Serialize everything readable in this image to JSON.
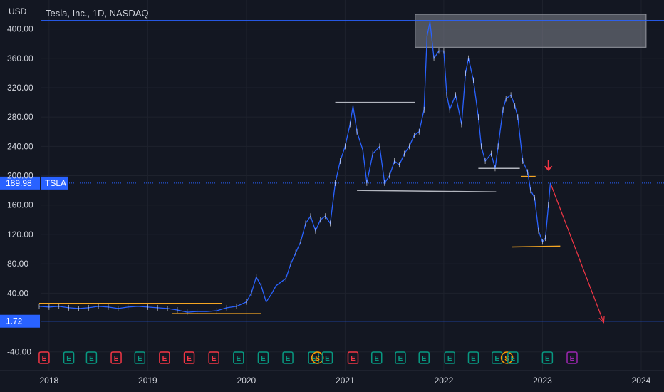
{
  "header": {
    "currency": "USD",
    "symbol_info": "Tesla, Inc., 1D, NASDAQ"
  },
  "colors": {
    "background": "#131722",
    "price_line": "#2962ff",
    "label_bg": "#2962ff",
    "grid": "#1e222d",
    "support": "#f5a623",
    "resistance": "#b2b5be",
    "arrow": "#f23645",
    "event_earnings_up": "#089981",
    "event_earnings_down": "#f23645",
    "event_split": "#ff9800",
    "event_upcoming": "#9c27b0"
  },
  "chart_data": {
    "type": "line",
    "title": "Tesla, Inc., 1D, NASDAQ",
    "ylabel": "USD",
    "ylim": [
      -50,
      420
    ],
    "xlim": [
      2017.9,
      2024.65
    ],
    "y_ticks": [
      "400.00",
      "360.00",
      "320.00",
      "280.00",
      "240.00",
      "200.00",
      "160.00",
      "120.00",
      "80.00",
      "40.00",
      "-40.00"
    ],
    "x_ticks": [
      "2018",
      "2019",
      "2020",
      "2021",
      "2022",
      "2023",
      "2024"
    ],
    "x_tick_values": [
      2018.0,
      2019.0,
      2020.0,
      2021.0,
      2022.0,
      2023.0,
      2024.0
    ],
    "series": [
      {
        "points": [
          [
            2017.9,
            22
          ],
          [
            2018.0,
            21
          ],
          [
            2018.1,
            22
          ],
          [
            2018.2,
            20
          ],
          [
            2018.3,
            19
          ],
          [
            2018.4,
            20
          ],
          [
            2018.5,
            22
          ],
          [
            2018.6,
            21
          ],
          [
            2018.7,
            19
          ],
          [
            2018.8,
            21
          ],
          [
            2018.9,
            22
          ],
          [
            2019.0,
            21
          ],
          [
            2019.1,
            20
          ],
          [
            2019.2,
            19
          ],
          [
            2019.3,
            17
          ],
          [
            2019.4,
            14
          ],
          [
            2019.5,
            15
          ],
          [
            2019.6,
            15
          ],
          [
            2019.7,
            16
          ],
          [
            2019.8,
            20
          ],
          [
            2019.9,
            22
          ],
          [
            2020.0,
            28
          ],
          [
            2020.05,
            40
          ],
          [
            2020.1,
            62
          ],
          [
            2020.15,
            50
          ],
          [
            2020.2,
            28
          ],
          [
            2020.25,
            38
          ],
          [
            2020.3,
            50
          ],
          [
            2020.4,
            60
          ],
          [
            2020.45,
            80
          ],
          [
            2020.5,
            95
          ],
          [
            2020.55,
            110
          ],
          [
            2020.6,
            135
          ],
          [
            2020.65,
            145
          ],
          [
            2020.7,
            125
          ],
          [
            2020.75,
            140
          ],
          [
            2020.8,
            145
          ],
          [
            2020.85,
            135
          ],
          [
            2020.9,
            190
          ],
          [
            2020.95,
            220
          ],
          [
            2021.0,
            240
          ],
          [
            2021.05,
            270
          ],
          [
            2021.08,
            295
          ],
          [
            2021.12,
            260
          ],
          [
            2021.18,
            235
          ],
          [
            2021.22,
            190
          ],
          [
            2021.28,
            230
          ],
          [
            2021.35,
            240
          ],
          [
            2021.4,
            190
          ],
          [
            2021.45,
            200
          ],
          [
            2021.5,
            220
          ],
          [
            2021.55,
            215
          ],
          [
            2021.6,
            230
          ],
          [
            2021.65,
            240
          ],
          [
            2021.7,
            255
          ],
          [
            2021.75,
            260
          ],
          [
            2021.8,
            290
          ],
          [
            2021.83,
            390
          ],
          [
            2021.86,
            410
          ],
          [
            2021.9,
            360
          ],
          [
            2021.95,
            370
          ],
          [
            2022.0,
            370
          ],
          [
            2022.03,
            310
          ],
          [
            2022.06,
            290
          ],
          [
            2022.12,
            310
          ],
          [
            2022.18,
            270
          ],
          [
            2022.22,
            340
          ],
          [
            2022.25,
            360
          ],
          [
            2022.3,
            330
          ],
          [
            2022.35,
            280
          ],
          [
            2022.38,
            240
          ],
          [
            2022.42,
            220
          ],
          [
            2022.48,
            230
          ],
          [
            2022.52,
            210
          ],
          [
            2022.55,
            240
          ],
          [
            2022.6,
            290
          ],
          [
            2022.63,
            305
          ],
          [
            2022.68,
            310
          ],
          [
            2022.72,
            295
          ],
          [
            2022.75,
            280
          ],
          [
            2022.8,
            220
          ],
          [
            2022.85,
            205
          ],
          [
            2022.88,
            180
          ],
          [
            2022.92,
            170
          ],
          [
            2022.96,
            125
          ],
          [
            2023.0,
            110
          ],
          [
            2023.03,
            115
          ],
          [
            2023.06,
            160
          ],
          [
            2023.08,
            190
          ]
        ]
      }
    ],
    "price_labels": [
      {
        "text": "189.98",
        "value": 189.98,
        "tag": "TSLA"
      },
      {
        "text": "1.72",
        "value": 1.72
      }
    ],
    "drawings": {
      "supply_zone": {
        "x": [
          2021.71,
          2024.05
        ],
        "y": [
          375,
          420
        ]
      },
      "resistance_lines": [
        {
          "x": [
            2020.9,
            2021.71
          ],
          "y": [
            300,
            300
          ]
        },
        {
          "x": [
            2021.12,
            2022.53
          ],
          "y": [
            180,
            178
          ]
        },
        {
          "x": [
            2022.35,
            2022.77
          ],
          "y": [
            210,
            210
          ]
        }
      ],
      "support_lines": [
        {
          "x": [
            2017.9,
            2019.75
          ],
          "y": [
            26,
            26
          ]
        },
        {
          "x": [
            2019.25,
            2020.15
          ],
          "y": [
            12,
            12
          ]
        },
        {
          "x": [
            2022.78,
            2022.93
          ],
          "y": [
            199,
            199
          ]
        },
        {
          "x": [
            2022.69,
            2023.18
          ],
          "y": [
            103,
            104
          ]
        }
      ],
      "projection_arrow": {
        "x": [
          2023.08,
          2023.62
        ],
        "y": [
          189.98,
          0
        ]
      },
      "marker_arrow": {
        "x": 2023.06,
        "y": 208
      }
    },
    "events": [
      {
        "type": "E",
        "status": "down",
        "x": 2017.95
      },
      {
        "type": "E",
        "status": "up",
        "x": 2018.2
      },
      {
        "type": "E",
        "status": "up",
        "x": 2018.43
      },
      {
        "type": "E",
        "status": "down",
        "x": 2018.68
      },
      {
        "type": "E",
        "status": "up",
        "x": 2018.92
      },
      {
        "type": "E",
        "status": "down",
        "x": 2019.17
      },
      {
        "type": "E",
        "status": "down",
        "x": 2019.42
      },
      {
        "type": "E",
        "status": "down",
        "x": 2019.67
      },
      {
        "type": "E",
        "status": "up",
        "x": 2019.92
      },
      {
        "type": "E",
        "status": "up",
        "x": 2020.17
      },
      {
        "type": "E",
        "status": "up",
        "x": 2020.42
      },
      {
        "type": "E",
        "status": "up",
        "x": 2020.68
      },
      {
        "type": "S",
        "status": "split",
        "x": 2020.72
      },
      {
        "type": "E",
        "status": "up",
        "x": 2020.82
      },
      {
        "type": "E",
        "status": "down",
        "x": 2021.08
      },
      {
        "type": "E",
        "status": "up",
        "x": 2021.32
      },
      {
        "type": "E",
        "status": "up",
        "x": 2021.56
      },
      {
        "type": "E",
        "status": "up",
        "x": 2021.8
      },
      {
        "type": "E",
        "status": "up",
        "x": 2022.06
      },
      {
        "type": "E",
        "status": "up",
        "x": 2022.3
      },
      {
        "type": "E",
        "status": "up",
        "x": 2022.54
      },
      {
        "type": "S",
        "status": "split",
        "x": 2022.64
      },
      {
        "type": "E",
        "status": "up",
        "x": 2022.7
      },
      {
        "type": "E",
        "status": "up",
        "x": 2023.05
      },
      {
        "type": "E",
        "status": "upcoming",
        "x": 2023.3
      }
    ]
  }
}
